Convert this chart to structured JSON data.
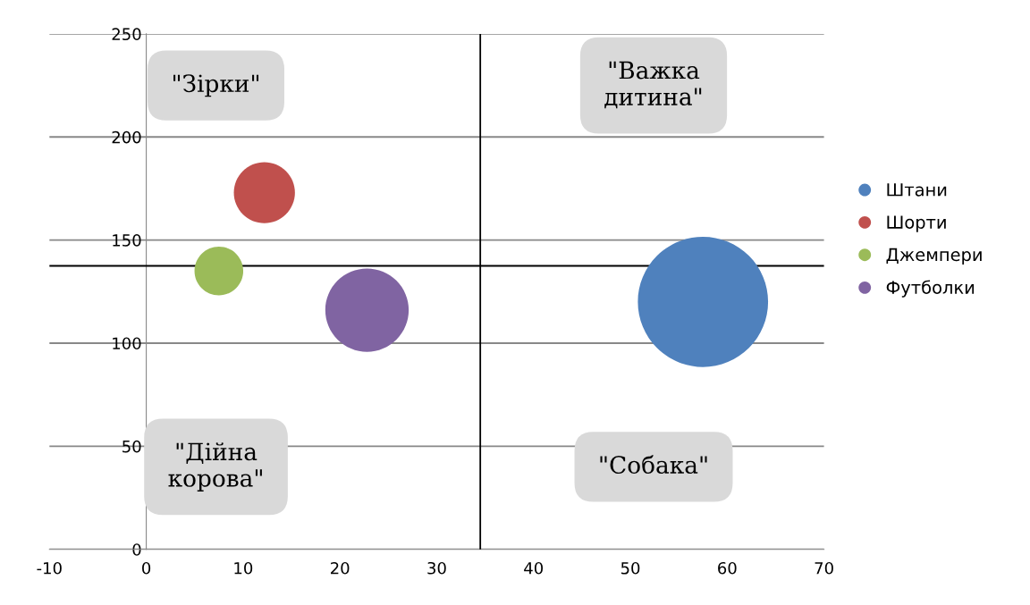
{
  "chart_data": {
    "type": "bubble",
    "series": [
      {
        "name": "Штани",
        "color": "#4f81bd",
        "x": [
          57.5
        ],
        "values": [
          120
        ],
        "sizes": [
          1
        ]
      },
      {
        "name": "Шорти",
        "color": "#c0504d",
        "x": [
          12.2
        ],
        "values": [
          173
        ],
        "sizes": [
          0.22
        ]
      },
      {
        "name": "Джемпери",
        "color": "#9bbb59",
        "x": [
          7.5
        ],
        "values": [
          135
        ],
        "sizes": [
          0.14
        ]
      },
      {
        "name": "Футболки",
        "color": "#8064a2",
        "x": [
          22.8
        ],
        "values": [
          116
        ],
        "sizes": [
          0.41
        ]
      }
    ],
    "xlim": [
      -10,
      70
    ],
    "xticks": [
      -10,
      0,
      10,
      20,
      30,
      40,
      50,
      60,
      70
    ],
    "ylim": [
      0,
      250
    ],
    "yticks": [
      0,
      50,
      100,
      150,
      200,
      250
    ],
    "ref_lines": [
      {
        "axis": "x",
        "value": 34.5,
        "color": "#000000"
      },
      {
        "axis": "y",
        "value": 137.5,
        "color": "#000000"
      }
    ],
    "annotations": [
      "\"Зірки\"",
      "\"Важка дитина\"",
      "\"Дійна корова\"",
      "\"Собака\""
    ],
    "grid": "y",
    "legend": "right"
  }
}
